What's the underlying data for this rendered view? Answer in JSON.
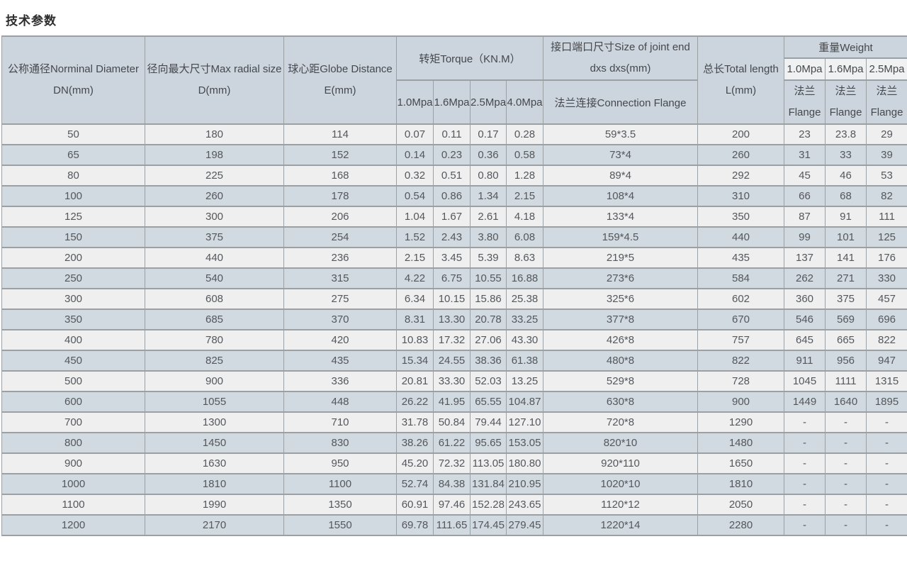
{
  "page_title": "技术参数",
  "colors": {
    "header_bg": "#ccd5dd",
    "row_light_bg": "#efefef",
    "row_blue_bg": "#d1dae1",
    "weight_mpa_bg": "#f0f1f2",
    "border": "#9aa0a4",
    "text": "#54575c",
    "title_text": "#2d2d2d"
  },
  "table": {
    "header": {
      "dn_line1": "公称通径Norminal Diameter",
      "dn_line2": "DN(mm)",
      "d_line1": "径向最大尺寸Max radial size",
      "d_line2": "D(mm)",
      "e_line1": "球心距Globe Distance",
      "e_line2": "E(mm)",
      "torque_title": "转矩Torque（KN.M）",
      "torque_cols": {
        "c1": "1.0Mpa",
        "c2": "1.6Mpa",
        "c3": "2.5Mpa",
        "c4": "4.0Mpa"
      },
      "joint_line1": "接口端口尺寸Size of joint end",
      "joint_line2": "dxs dxs(mm)",
      "joint_sub": "法兰连接Connection Flange",
      "length_line1": "总长Total length",
      "length_line2": "L(mm)",
      "weight_title": "重量Weight",
      "weight_cols": {
        "c1": "1.0Mpa",
        "c2": "1.6Mpa",
        "c3": "2.5Mpa"
      },
      "flange_line1": "法兰",
      "flange_line2": "Flange"
    },
    "rows": [
      [
        "50",
        "180",
        "114",
        "0.07",
        "0.11",
        "0.17",
        "0.28",
        "59*3.5",
        "200",
        "23",
        "23.8",
        "29"
      ],
      [
        "65",
        "198",
        "152",
        "0.14",
        "0.23",
        "0.36",
        "0.58",
        "73*4",
        "260",
        "31",
        "33",
        "39"
      ],
      [
        "80",
        "225",
        "168",
        "0.32",
        "0.51",
        "0.80",
        "1.28",
        "89*4",
        "292",
        "45",
        "46",
        "53"
      ],
      [
        "100",
        "260",
        "178",
        "0.54",
        "0.86",
        "1.34",
        "2.15",
        "108*4",
        "310",
        "66",
        "68",
        "82"
      ],
      [
        "125",
        "300",
        "206",
        "1.04",
        "1.67",
        "2.61",
        "4.18",
        "133*4",
        "350",
        "87",
        "91",
        "111"
      ],
      [
        "150",
        "375",
        "254",
        "1.52",
        "2.43",
        "3.80",
        "6.08",
        "159*4.5",
        "440",
        "99",
        "101",
        "125"
      ],
      [
        "200",
        "440",
        "236",
        "2.15",
        "3.45",
        "5.39",
        "8.63",
        "219*5",
        "435",
        "137",
        "141",
        "176"
      ],
      [
        "250",
        "540",
        "315",
        "4.22",
        "6.75",
        "10.55",
        "16.88",
        "273*6",
        "584",
        "262",
        "271",
        "330"
      ],
      [
        "300",
        "608",
        "275",
        "6.34",
        "10.15",
        "15.86",
        "25.38",
        "325*6",
        "602",
        "360",
        "375",
        "457"
      ],
      [
        "350",
        "685",
        "370",
        "8.31",
        "13.30",
        "20.78",
        "33.25",
        "377*8",
        "670",
        "546",
        "569",
        "696"
      ],
      [
        "400",
        "780",
        "420",
        "10.83",
        "17.32",
        "27.06",
        "43.30",
        "426*8",
        "757",
        "645",
        "665",
        "822"
      ],
      [
        "450",
        "825",
        "435",
        "15.34",
        "24.55",
        "38.36",
        "61.38",
        "480*8",
        "822",
        "911",
        "956",
        "947"
      ],
      [
        "500",
        "900",
        "336",
        "20.81",
        "33.30",
        "52.03",
        "13.25",
        "529*8",
        "728",
        "1045",
        "1111",
        "1315"
      ],
      [
        "600",
        "1055",
        "448",
        "26.22",
        "41.95",
        "65.55",
        "104.87",
        "630*8",
        "900",
        "1449",
        "1640",
        "1895"
      ],
      [
        "700",
        "1300",
        "710",
        "31.78",
        "50.84",
        "79.44",
        "127.10",
        "720*8",
        "1290",
        "-",
        "-",
        "-"
      ],
      [
        "800",
        "1450",
        "830",
        "38.26",
        "61.22",
        "95.65",
        "153.05",
        "820*10",
        "1480",
        "-",
        "-",
        "-"
      ],
      [
        "900",
        "1630",
        "950",
        "45.20",
        "72.32",
        "113.05",
        "180.80",
        "920*110",
        "1650",
        "-",
        "-",
        "-"
      ],
      [
        "1000",
        "1810",
        "1100",
        "52.74",
        "84.38",
        "131.84",
        "210.95",
        "1020*10",
        "1810",
        "-",
        "-",
        "-"
      ],
      [
        "1100",
        "1990",
        "1350",
        "60.91",
        "97.46",
        "152.28",
        "243.65",
        "1120*12",
        "2050",
        "-",
        "-",
        "-"
      ],
      [
        "1200",
        "2170",
        "1550",
        "69.78",
        "111.65",
        "174.45",
        "279.45",
        "1220*14",
        "2280",
        "-",
        "-",
        "-"
      ]
    ]
  }
}
